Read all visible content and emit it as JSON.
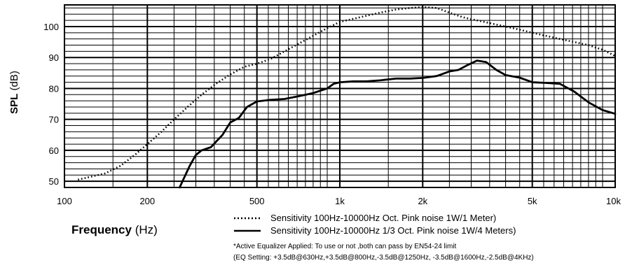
{
  "chart_data": {
    "type": "line",
    "xscale": "log",
    "xlim": [
      100,
      10000
    ],
    "ylim": [
      48,
      107
    ],
    "grid": true,
    "x_tick_labels": [
      {
        "value": 100,
        "label": "100"
      },
      {
        "value": 200,
        "label": "200"
      },
      {
        "value": 500,
        "label": "500"
      },
      {
        "value": 1000,
        "label": "1k"
      },
      {
        "value": 2000,
        "label": "2k"
      },
      {
        "value": 5000,
        "label": "5k"
      },
      {
        "value": 10000,
        "label": "10k"
      }
    ],
    "y_tick_labels": [
      {
        "value": 50,
        "label": "50"
      },
      {
        "value": 60,
        "label": "60"
      },
      {
        "value": 70,
        "label": "70"
      },
      {
        "value": 80,
        "label": "80"
      },
      {
        "value": 90,
        "label": "90"
      },
      {
        "value": 100,
        "label": "100"
      }
    ],
    "ylabel_bold": "SPL",
    "ylabel_unit": "(dB)",
    "xlabel_bold": "Frequency",
    "xlabel_unit": "(Hz)",
    "series": [
      {
        "name": "Sensitivity 100Hz-10000Hz Oct. Pink noise 1W/1 Meter)",
        "style": "dotted",
        "color": "#000000",
        "points": [
          [
            112,
            50.5
          ],
          [
            125,
            51.5
          ],
          [
            140,
            52.5
          ],
          [
            160,
            55
          ],
          [
            180,
            58.5
          ],
          [
            200,
            62
          ],
          [
            225,
            66
          ],
          [
            250,
            70
          ],
          [
            280,
            74
          ],
          [
            315,
            78
          ],
          [
            355,
            81.5
          ],
          [
            400,
            84.5
          ],
          [
            450,
            87
          ],
          [
            500,
            88
          ],
          [
            560,
            89.5
          ],
          [
            630,
            92
          ],
          [
            710,
            94.5
          ],
          [
            800,
            97
          ],
          [
            900,
            99.5
          ],
          [
            1000,
            101.5
          ],
          [
            1120,
            102.5
          ],
          [
            1250,
            103.5
          ],
          [
            1400,
            104.5
          ],
          [
            1600,
            105.5
          ],
          [
            1800,
            106
          ],
          [
            2000,
            106.3
          ],
          [
            2250,
            106
          ],
          [
            2500,
            104.5
          ],
          [
            2800,
            103
          ],
          [
            3150,
            102
          ],
          [
            3550,
            101
          ],
          [
            4000,
            100
          ],
          [
            4500,
            99
          ],
          [
            5000,
            98
          ],
          [
            5600,
            97
          ],
          [
            6300,
            96
          ],
          [
            7100,
            95
          ],
          [
            8000,
            94
          ],
          [
            9000,
            92.5
          ],
          [
            10000,
            90.5
          ]
        ]
      },
      {
        "name": "Sensitivity 100Hz-10000Hz 1/3 Oct. Pink noise 1W/4 Meters)",
        "style": "solid",
        "color": "#000000",
        "points": [
          [
            262,
            48
          ],
          [
            270,
            50.5
          ],
          [
            285,
            55
          ],
          [
            300,
            58.5
          ],
          [
            315,
            60
          ],
          [
            340,
            61
          ],
          [
            375,
            65
          ],
          [
            400,
            69
          ],
          [
            430,
            70.5
          ],
          [
            460,
            74
          ],
          [
            500,
            75.8
          ],
          [
            560,
            76.3
          ],
          [
            630,
            76.6
          ],
          [
            710,
            77.5
          ],
          [
            800,
            78.5
          ],
          [
            900,
            80
          ],
          [
            950,
            81.5
          ],
          [
            1000,
            82
          ],
          [
            1120,
            82.3
          ],
          [
            1250,
            82.3
          ],
          [
            1400,
            82.6
          ],
          [
            1600,
            83.2
          ],
          [
            1800,
            83.2
          ],
          [
            2000,
            83.4
          ],
          [
            2250,
            84
          ],
          [
            2500,
            85.5
          ],
          [
            2700,
            86
          ],
          [
            2900,
            87.5
          ],
          [
            3150,
            89
          ],
          [
            3400,
            88.5
          ],
          [
            3700,
            86
          ],
          [
            4000,
            84.3
          ],
          [
            4500,
            83.5
          ],
          [
            5000,
            82
          ],
          [
            5600,
            81.8
          ],
          [
            6300,
            81.5
          ],
          [
            7100,
            79
          ],
          [
            8000,
            75.5
          ],
          [
            9000,
            73
          ],
          [
            10000,
            71.8
          ]
        ]
      }
    ],
    "legend": [
      {
        "style": "dotted",
        "label": "Sensitivity 100Hz-10000Hz Oct. Pink noise 1W/1 Meter)"
      },
      {
        "style": "solid",
        "label": "Sensitivity 100Hz-10000Hz 1/3 Oct. Pink noise 1W/4 Meters)"
      }
    ],
    "notes": [
      "*Active Equalizer Applied: To use or not ,both can pass by EN54-24 limit",
      "(EQ Setting: +3.5dB@630Hz,+3.5dB@800Hz,-3.5dB@1250Hz, -3.5dB@1600Hz,-2.5dB@4KHz)"
    ]
  }
}
